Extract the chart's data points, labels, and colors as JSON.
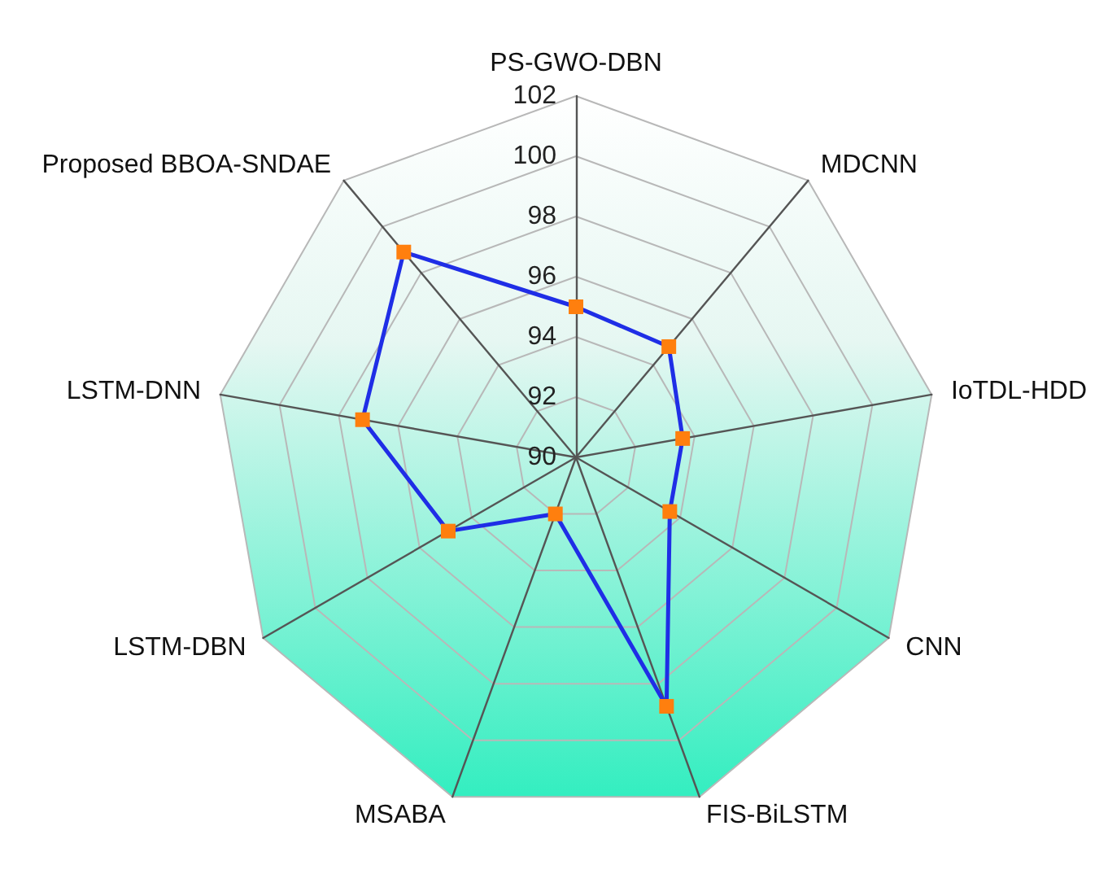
{
  "chart_data": {
    "type": "radar",
    "categories": [
      "PS-GWO-DBN",
      "MDCNN",
      "IoTDL-HDD",
      "CNN",
      "FIS-BiLSTM",
      "MSABA",
      "LSTM-DBN",
      "LSTM-DNN",
      "Proposed BBOA-SNDAE"
    ],
    "series": [
      {
        "color": "#1f2ee6",
        "values": [
          95.0,
          94.8,
          93.6,
          93.6,
          98.8,
          92.0,
          94.9,
          97.2,
          98.9
        ]
      }
    ],
    "ylim": [
      90,
      102
    ],
    "yticks": [
      90,
      92,
      94,
      96,
      98,
      100,
      102
    ],
    "marker": "square",
    "grid": true
  }
}
